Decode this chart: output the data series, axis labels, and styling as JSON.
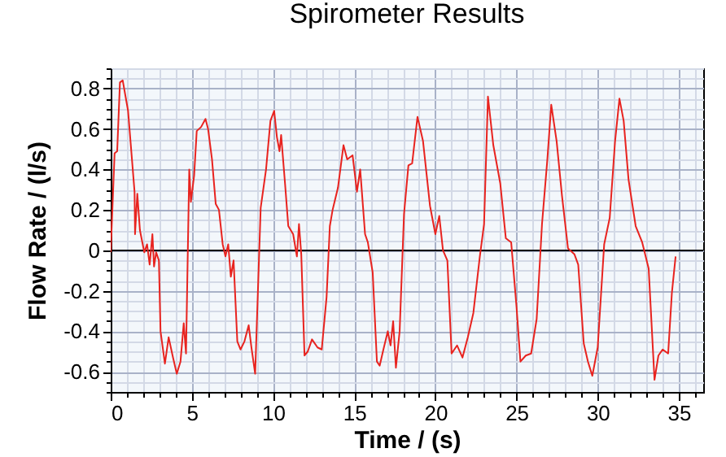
{
  "chart_data": {
    "type": "line",
    "title": "Spirometer Results",
    "xlabel": "Time / (s)",
    "ylabel": "Flow Rate / (l/s)",
    "xlim": [
      0,
      36.5
    ],
    "ylim": [
      -0.7,
      0.9
    ],
    "xticks": [
      0,
      5,
      10,
      15,
      20,
      25,
      30,
      35
    ],
    "yticks": [
      {
        "value": -0.6,
        "label": "-0.6"
      },
      {
        "value": -0.4,
        "label": "-0.4"
      },
      {
        "value": -0.2,
        "label": "-0.2"
      },
      0,
      {
        "value": 0.2,
        "label": "0.2"
      },
      {
        "value": 0.4,
        "label": "0.4"
      },
      {
        "value": 0.6,
        "label": "0.6"
      },
      {
        "value": 0.8,
        "label": "0.8"
      }
    ],
    "grid": true,
    "ref_lines": [
      {
        "axis": "y",
        "value": 0,
        "color": "#000000"
      }
    ],
    "series": [
      {
        "color": "#e8231f",
        "x": [
          0,
          0.24,
          0.4,
          0.57,
          0.74,
          1.07,
          1.24,
          1.47,
          1.5,
          1.64,
          1.8,
          2.07,
          2.24,
          2.4,
          2.57,
          2.67,
          2.8,
          2.97,
          3.07,
          3.34,
          3.57,
          3.84,
          4.07,
          4.3,
          4.5,
          4.64,
          4.84,
          4.94,
          5.14,
          5.3,
          5.57,
          5.84,
          6.0,
          6.24,
          6.47,
          6.67,
          6.9,
          7.07,
          7.24,
          7.4,
          7.57,
          7.8,
          8.0,
          8.24,
          8.5,
          8.67,
          8.9,
          9.24,
          9.57,
          9.84,
          10.07,
          10.24,
          10.4,
          10.5,
          10.74,
          10.94,
          11.24,
          11.47,
          11.6,
          11.74,
          11.94,
          12.14,
          12.4,
          12.74,
          13.0,
          13.3,
          13.5,
          13.67,
          14.0,
          14.34,
          14.57,
          14.9,
          15.17,
          15.37,
          15.67,
          15.84,
          16.14,
          16.4,
          16.57,
          16.8,
          17.07,
          17.24,
          17.4,
          17.57,
          17.8,
          18.07,
          18.34,
          18.57,
          18.9,
          19.24,
          19.67,
          20.0,
          20.24,
          20.47,
          20.74,
          21.0,
          21.34,
          21.67,
          22.0,
          22.34,
          22.74,
          23.0,
          23.24,
          23.57,
          24.0,
          24.34,
          24.67,
          25.0,
          25.24,
          25.57,
          25.9,
          26.24,
          26.57,
          26.9,
          27.14,
          27.47,
          27.8,
          28.17,
          28.57,
          28.8,
          29.14,
          29.4,
          29.67,
          30.0,
          30.4,
          30.74,
          31.07,
          31.34,
          31.6,
          31.9,
          32.34,
          32.74,
          33.14,
          33.5,
          33.74,
          34.0,
          34.34,
          34.57,
          34.8
        ],
        "values": [
          -0.01,
          0.48,
          0.49,
          0.83,
          0.84,
          0.69,
          0.52,
          0.29,
          0.08,
          0.28,
          0.1,
          -0.01,
          0.03,
          -0.07,
          0.08,
          -0.08,
          -0.01,
          -0.05,
          -0.4,
          -0.56,
          -0.43,
          -0.53,
          -0.61,
          -0.55,
          -0.36,
          -0.51,
          0.4,
          0.24,
          0.37,
          0.59,
          0.61,
          0.65,
          0.6,
          0.45,
          0.23,
          0.2,
          0.03,
          -0.03,
          0.03,
          -0.13,
          -0.05,
          -0.45,
          -0.49,
          -0.45,
          -0.37,
          -0.48,
          -0.61,
          0.21,
          0.4,
          0.64,
          0.69,
          0.56,
          0.49,
          0.57,
          0.33,
          0.12,
          0.08,
          -0.03,
          0.13,
          -0.02,
          -0.52,
          -0.5,
          -0.44,
          -0.48,
          -0.49,
          -0.23,
          0.12,
          0.2,
          0.31,
          0.52,
          0.45,
          0.47,
          0.29,
          0.4,
          0.08,
          0.04,
          -0.11,
          -0.55,
          -0.57,
          -0.49,
          -0.4,
          -0.47,
          -0.35,
          -0.58,
          -0.4,
          0.18,
          0.42,
          0.43,
          0.66,
          0.54,
          0.22,
          0.08,
          0.17,
          0.0,
          -0.05,
          -0.51,
          -0.47,
          -0.53,
          -0.43,
          -0.31,
          -0.03,
          0.13,
          0.76,
          0.52,
          0.33,
          0.06,
          0.04,
          -0.28,
          -0.55,
          -0.52,
          -0.51,
          -0.34,
          0.13,
          0.45,
          0.72,
          0.54,
          0.27,
          0.01,
          -0.02,
          -0.07,
          -0.46,
          -0.55,
          -0.62,
          -0.48,
          0.03,
          0.16,
          0.54,
          0.75,
          0.64,
          0.35,
          0.12,
          0.04,
          -0.09,
          -0.64,
          -0.52,
          -0.49,
          -0.51,
          -0.21,
          -0.03
        ]
      }
    ]
  }
}
